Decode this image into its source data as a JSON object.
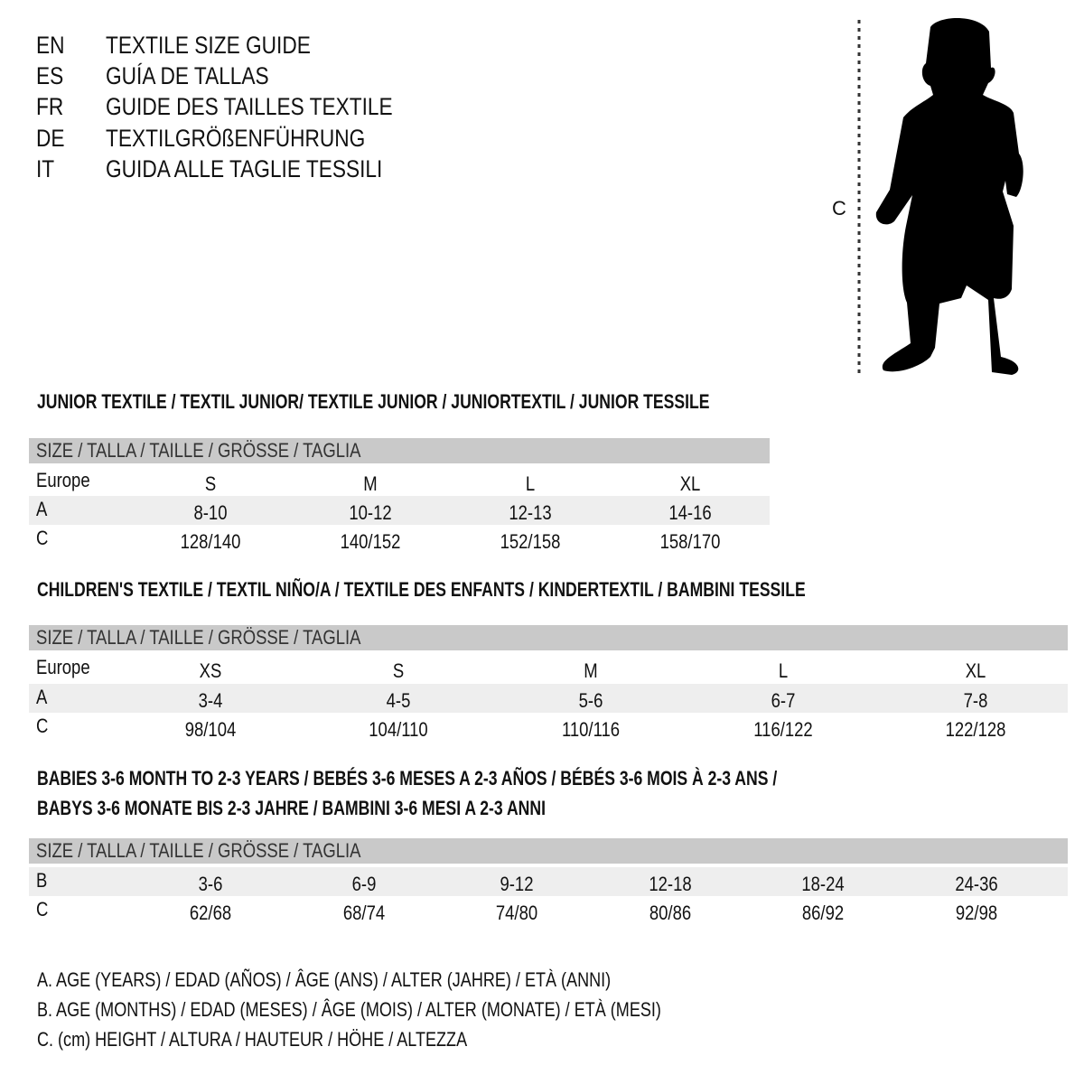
{
  "languages": [
    {
      "code": "EN",
      "title": "TEXTILE SIZE GUIDE"
    },
    {
      "code": "ES",
      "title": "GUÍA DE TALLAS"
    },
    {
      "code": "FR",
      "title": "GUIDE DES TAILLES TEXTILE"
    },
    {
      "code": "DE",
      "title": "TEXTILGRÖßENFÜHRUNG"
    },
    {
      "code": "IT",
      "title": "GUIDA ALLE TAGLIE TESSILI"
    }
  ],
  "figure": {
    "label": "C",
    "icon": "child-silhouette-icon"
  },
  "size_header": "SIZE / TALLA / TAILLE / GRÖSSE / TAGLIA",
  "sections": [
    {
      "title_lines": [
        "JUNIOR TEXTILE / TEXTIL JUNIOR/ TEXTILE JUNIOR / JUNIORTEXTIL / JUNIOR TESSILE"
      ],
      "rows": [
        {
          "label": "Europe",
          "values": [
            "S",
            "M",
            "L",
            "XL"
          ]
        },
        {
          "label": "A",
          "values": [
            "8-10",
            "10-12",
            "12-13",
            "14-16"
          ]
        },
        {
          "label": "C",
          "values": [
            "128/140",
            "140/152",
            "152/158",
            "158/170"
          ]
        }
      ]
    },
    {
      "title_lines": [
        "CHILDREN'S TEXTILE / TEXTIL NIÑO/A / TEXTILE DES ENFANTS / KINDERTEXTIL / BAMBINI TESSILE"
      ],
      "rows": [
        {
          "label": "Europe",
          "values": [
            "XS",
            "S",
            "M",
            "L",
            "XL"
          ]
        },
        {
          "label": "A",
          "values": [
            "3-4",
            "4-5",
            "5-6",
            "6-7",
            "7-8"
          ]
        },
        {
          "label": "C",
          "values": [
            "98/104",
            "104/110",
            "110/116",
            "116/122",
            "122/128"
          ]
        }
      ]
    },
    {
      "title_lines": [
        "BABIES 3-6 MONTH TO 2-3 YEARS / BEBÉS 3-6 MESES A 2-3 AÑOS / BÉBÉS 3-6 MOIS À 2-3 ANS /",
        "BABYS 3-6 MONATE BIS 2-3 JAHRE / BAMBINI 3-6 MESI A 2-3 ANNI"
      ],
      "rows": [
        {
          "label": "B",
          "values": [
            "3-6",
            "6-9",
            "9-12",
            "12-18",
            "18-24",
            "24-36"
          ]
        },
        {
          "label": "C",
          "values": [
            "62/68",
            "68/74",
            "74/80",
            "80/86",
            "86/92",
            "92/98"
          ]
        }
      ]
    }
  ],
  "legend": [
    "A. AGE (YEARS) / EDAD (AÑOS) / ÂGE (ANS) / ALTER (JAHRE) / ETÀ (ANNI)",
    "B. AGE (MONTHS) / EDAD (MESES) / ÂGE (MOIS) / ALTER (MONATE) / ETÀ (MESI)",
    "C. (cm) HEIGHT / ALTURA / HAUTEUR / HÖHE / ALTEZZA"
  ],
  "colors": {
    "header_band": "#c9c9c9",
    "alt_band": "#eeeeee",
    "text": "#111111"
  }
}
